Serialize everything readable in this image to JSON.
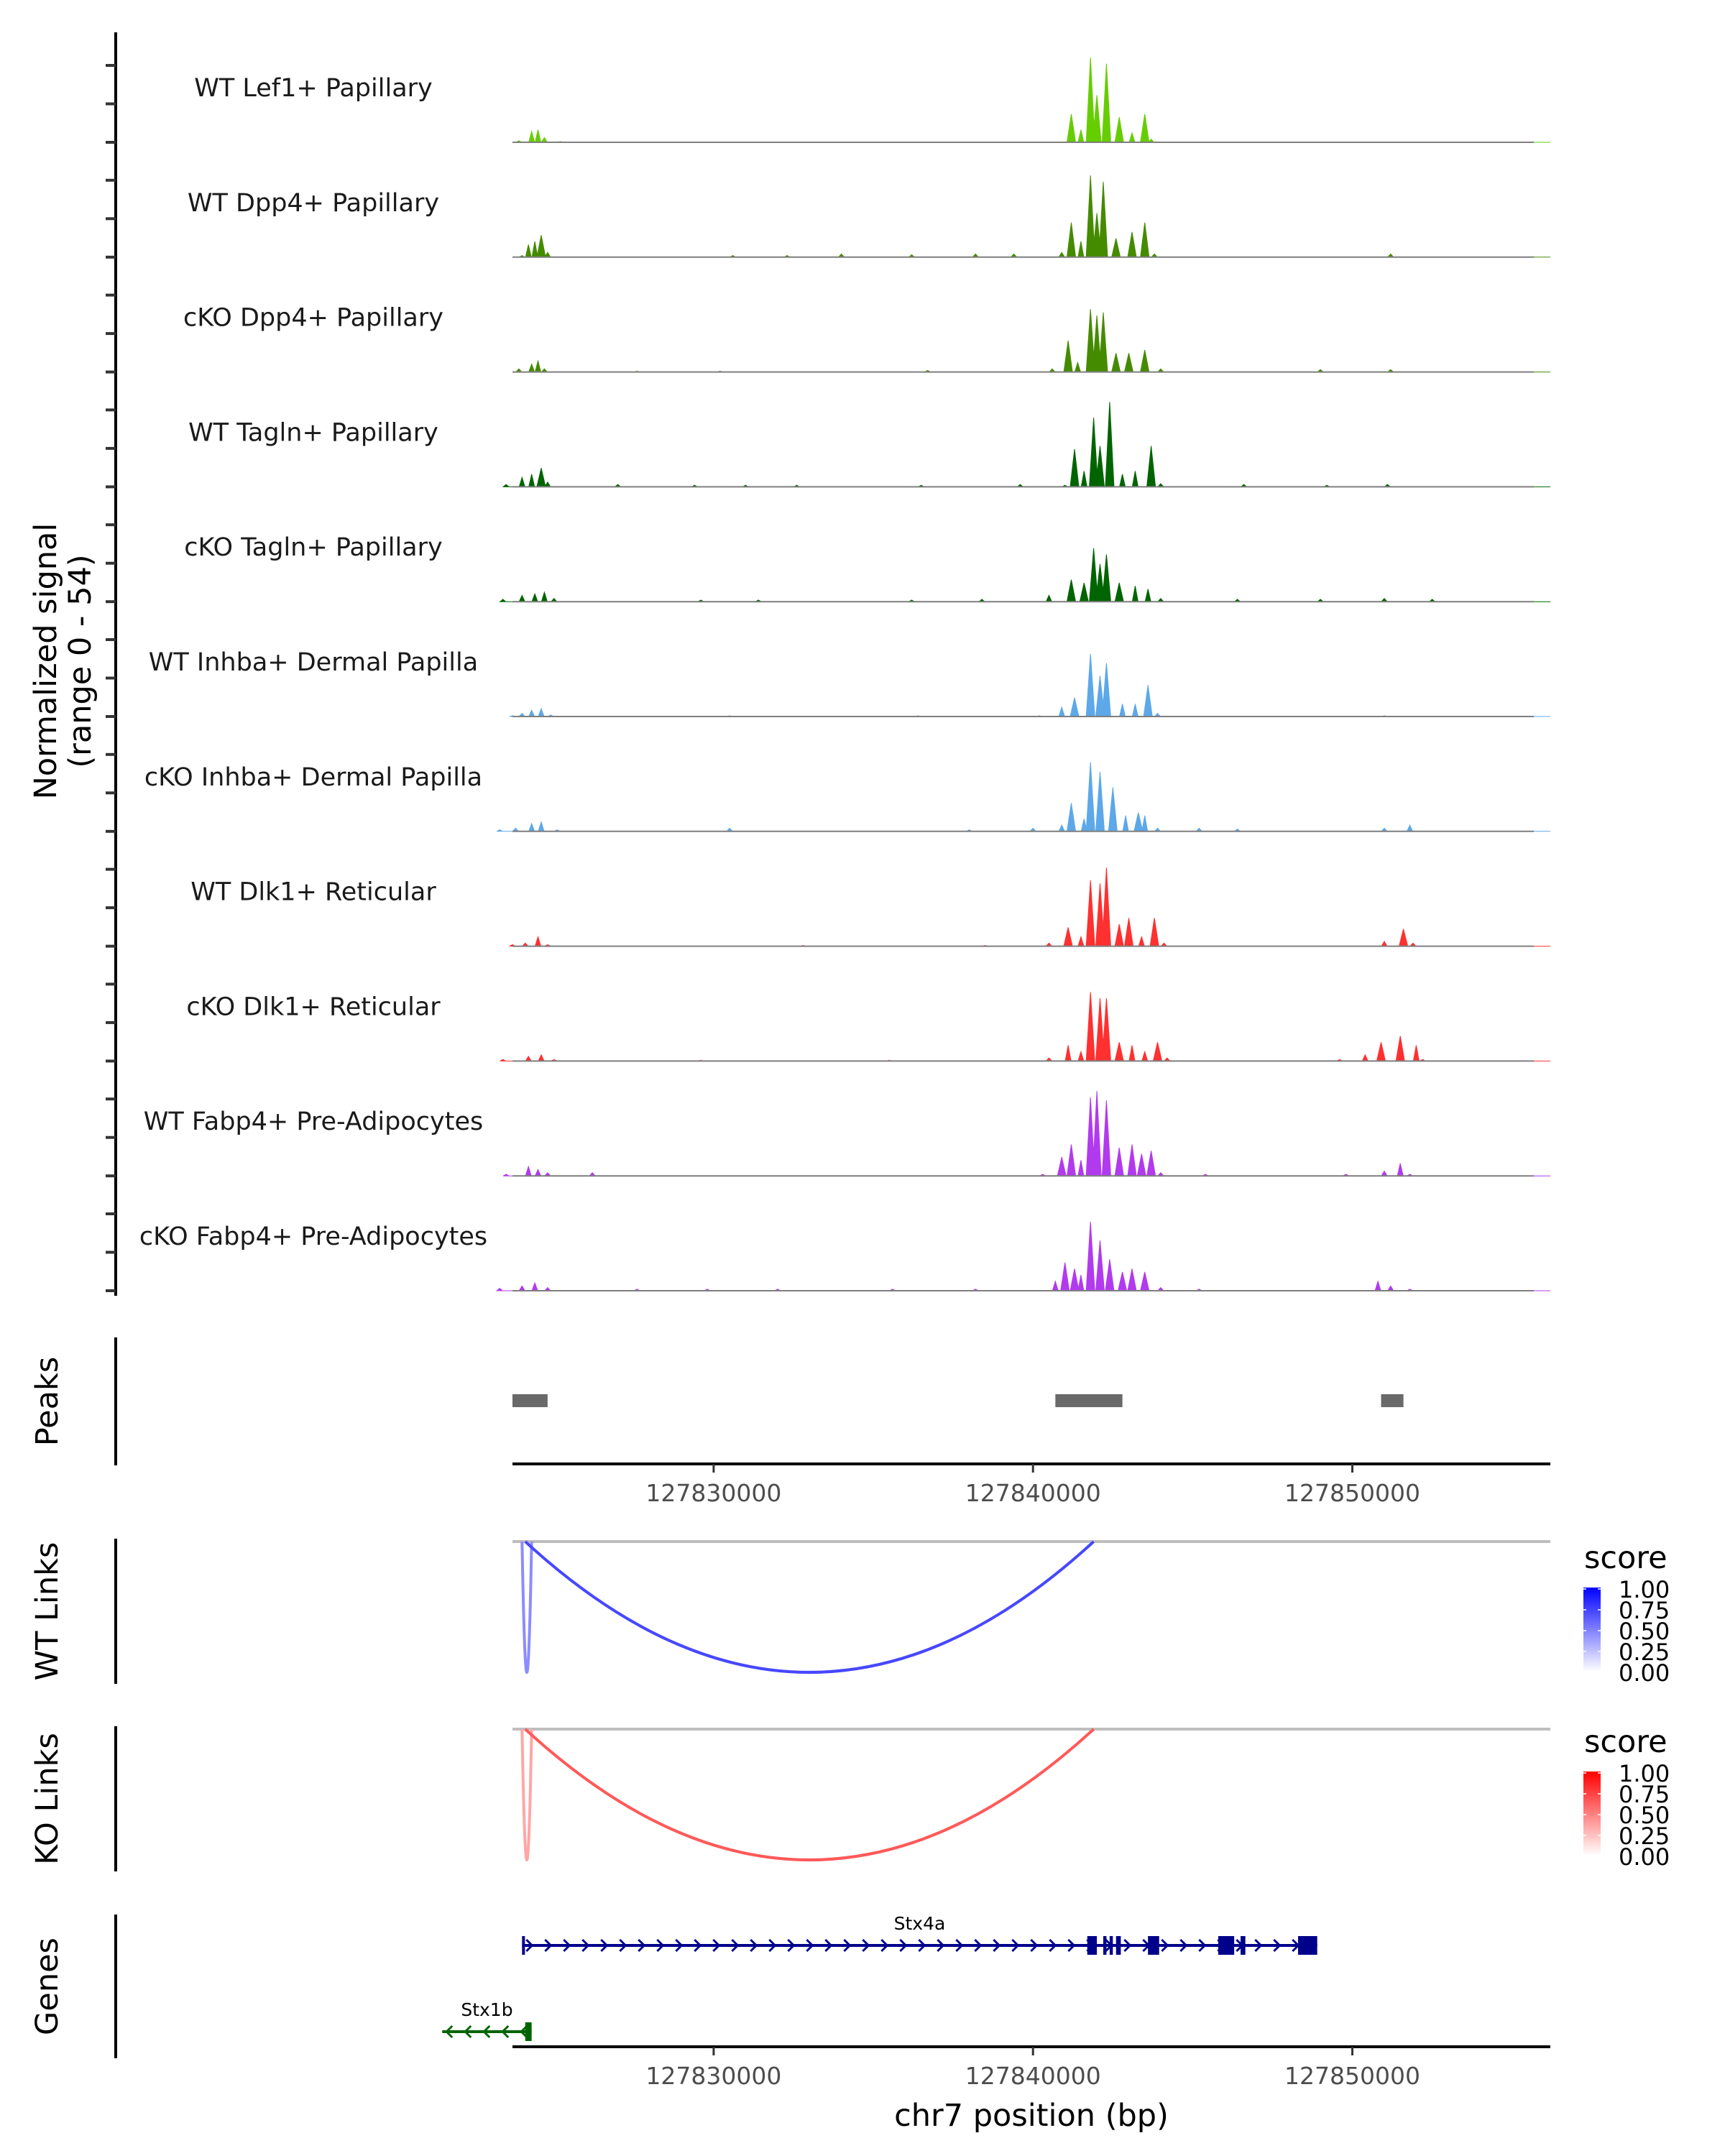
{
  "chart_data": {
    "type": "area",
    "title": "",
    "chromosome": "chr7",
    "xlabel": "chr7 position (bp)",
    "ylabel": "Normalized signal\n(range 0 - 54)",
    "ylabel_lines": [
      "Normalized signal",
      "(range 0 - 54)"
    ],
    "ylim": [
      0,
      54
    ],
    "xlim": [
      127823700,
      127856200
    ],
    "x_ticks": [
      127830000,
      127840000,
      127850000
    ],
    "x_tick_labels": [
      "127830000",
      "127840000",
      "127850000"
    ],
    "tracks": [
      {
        "name": "WT Lef1+ Papillary",
        "color": "#66CD00",
        "peaks": [
          [
            127823900,
            1
          ],
          [
            127824300,
            7
          ],
          [
            127824500,
            8
          ],
          [
            127824700,
            3
          ],
          [
            127825200,
            0.5
          ],
          [
            127840900,
            0
          ],
          [
            127841200,
            18
          ],
          [
            127841500,
            8
          ],
          [
            127841800,
            54
          ],
          [
            127842000,
            30
          ],
          [
            127842300,
            50
          ],
          [
            127842700,
            16
          ],
          [
            127843100,
            6
          ],
          [
            127843500,
            18
          ],
          [
            127843700,
            2
          ]
        ]
      },
      {
        "name": "WT Dpp4+ Papillary",
        "color": "#458B00",
        "peaks": [
          [
            127824000,
            1
          ],
          [
            127824200,
            8
          ],
          [
            127824400,
            10
          ],
          [
            127824600,
            14
          ],
          [
            127824800,
            3
          ],
          [
            127830600,
            1
          ],
          [
            127832300,
            1
          ],
          [
            127834000,
            2
          ],
          [
            127836200,
            1.5
          ],
          [
            127838200,
            2
          ],
          [
            127839400,
            2
          ],
          [
            127840900,
            3
          ],
          [
            127841200,
            22
          ],
          [
            127841500,
            10
          ],
          [
            127841800,
            52
          ],
          [
            127842000,
            28
          ],
          [
            127842200,
            48
          ],
          [
            127842600,
            12
          ],
          [
            127843100,
            16
          ],
          [
            127843500,
            22
          ],
          [
            127843800,
            2
          ],
          [
            127851200,
            2
          ]
        ]
      },
      {
        "name": "cKO Dpp4+ Papillary",
        "color": "#458B00",
        "peaks": [
          [
            127823900,
            2
          ],
          [
            127824300,
            5
          ],
          [
            127824500,
            7
          ],
          [
            127824700,
            2
          ],
          [
            127827600,
            0.5
          ],
          [
            127830200,
            0.5
          ],
          [
            127836700,
            1
          ],
          [
            127840600,
            2
          ],
          [
            127841100,
            20
          ],
          [
            127841400,
            6
          ],
          [
            127841800,
            40
          ],
          [
            127842000,
            36
          ],
          [
            127842200,
            38
          ],
          [
            127842600,
            12
          ],
          [
            127843000,
            12
          ],
          [
            127843500,
            14
          ],
          [
            127844000,
            2
          ],
          [
            127849000,
            1.5
          ],
          [
            127851200,
            1.5
          ]
        ]
      },
      {
        "name": "WT Tagln+ Papillary",
        "color": "#006400",
        "peaks": [
          [
            127823500,
            1.5
          ],
          [
            127824000,
            6
          ],
          [
            127824300,
            8
          ],
          [
            127824600,
            12
          ],
          [
            127824800,
            3
          ],
          [
            127827000,
            1.5
          ],
          [
            127829400,
            1
          ],
          [
            127831000,
            1
          ],
          [
            127832600,
            1
          ],
          [
            127836500,
            1
          ],
          [
            127839600,
            1.5
          ],
          [
            127841000,
            1
          ],
          [
            127841300,
            24
          ],
          [
            127841600,
            10
          ],
          [
            127841900,
            44
          ],
          [
            127842100,
            26
          ],
          [
            127842400,
            54
          ],
          [
            127842800,
            8
          ],
          [
            127843200,
            10
          ],
          [
            127843700,
            26
          ],
          [
            127844000,
            2
          ],
          [
            127846600,
            1.5
          ],
          [
            127849200,
            1
          ],
          [
            127851100,
            1.5
          ]
        ]
      },
      {
        "name": "cKO Tagln+ Papillary",
        "color": "#006400",
        "peaks": [
          [
            127823400,
            1.5
          ],
          [
            127824000,
            4
          ],
          [
            127824400,
            5
          ],
          [
            127824700,
            6
          ],
          [
            127825000,
            2
          ],
          [
            127829600,
            1
          ],
          [
            127831400,
            1
          ],
          [
            127836200,
            1
          ],
          [
            127838400,
            1.5
          ],
          [
            127840500,
            4
          ],
          [
            127841200,
            14
          ],
          [
            127841600,
            12
          ],
          [
            127841900,
            34
          ],
          [
            127842100,
            24
          ],
          [
            127842300,
            30
          ],
          [
            127842700,
            12
          ],
          [
            127843200,
            10
          ],
          [
            127843600,
            8
          ],
          [
            127844000,
            2
          ],
          [
            127846400,
            1.5
          ],
          [
            127849000,
            1.5
          ],
          [
            127851000,
            2
          ],
          [
            127852500,
            1.5
          ]
        ]
      },
      {
        "name": "WT Inhba+ Dermal Papilla",
        "color": "#5CA8E8",
        "peaks": [
          [
            127823700,
            0.5
          ],
          [
            127824000,
            2
          ],
          [
            127824300,
            4
          ],
          [
            127824600,
            5
          ],
          [
            127824900,
            1
          ],
          [
            127830500,
            0.5
          ],
          [
            127836400,
            0.5
          ],
          [
            127840200,
            0.5
          ],
          [
            127840900,
            6
          ],
          [
            127841300,
            12
          ],
          [
            127841800,
            40
          ],
          [
            127842100,
            26
          ],
          [
            127842300,
            34
          ],
          [
            127842800,
            8
          ],
          [
            127843200,
            8
          ],
          [
            127843600,
            20
          ],
          [
            127843900,
            2
          ],
          [
            127851000,
            0.5
          ]
        ]
      },
      {
        "name": "cKO Inhba+ Dermal Papilla",
        "color": "#5CA8E8",
        "peaks": [
          [
            127823300,
            1
          ],
          [
            127823800,
            2
          ],
          [
            127824300,
            5
          ],
          [
            127824600,
            6
          ],
          [
            127825100,
            1
          ],
          [
            127830500,
            2
          ],
          [
            127838000,
            1
          ],
          [
            127840000,
            2
          ],
          [
            127840900,
            4
          ],
          [
            127841200,
            18
          ],
          [
            127841600,
            8
          ],
          [
            127841800,
            44
          ],
          [
            127842100,
            38
          ],
          [
            127842500,
            28
          ],
          [
            127842900,
            10
          ],
          [
            127843300,
            12
          ],
          [
            127843500,
            10
          ],
          [
            127843900,
            2
          ],
          [
            127845200,
            2
          ],
          [
            127846400,
            1.5
          ],
          [
            127851000,
            2
          ],
          [
            127851800,
            4
          ]
        ]
      },
      {
        "name": "WT Dlk1+ Reticular",
        "color": "#FF3030",
        "peaks": [
          [
            127823700,
            1
          ],
          [
            127824100,
            2
          ],
          [
            127824500,
            6
          ],
          [
            127824800,
            1
          ],
          [
            127832800,
            0.5
          ],
          [
            127838500,
            0.5
          ],
          [
            127840500,
            2
          ],
          [
            127841100,
            12
          ],
          [
            127841500,
            6
          ],
          [
            127841800,
            42
          ],
          [
            127842100,
            40
          ],
          [
            127842300,
            50
          ],
          [
            127842700,
            14
          ],
          [
            127843000,
            18
          ],
          [
            127843400,
            6
          ],
          [
            127843800,
            18
          ],
          [
            127844100,
            2
          ],
          [
            127851000,
            3
          ],
          [
            127851600,
            11
          ],
          [
            127851900,
            2
          ]
        ]
      },
      {
        "name": "cKO Dlk1+ Reticular",
        "color": "#FF3030",
        "peaks": [
          [
            127823400,
            1
          ],
          [
            127824200,
            3
          ],
          [
            127824600,
            4
          ],
          [
            127825000,
            1
          ],
          [
            127829600,
            0.5
          ],
          [
            127835500,
            0.5
          ],
          [
            127840500,
            2
          ],
          [
            127841100,
            10
          ],
          [
            127841500,
            6
          ],
          [
            127841800,
            44
          ],
          [
            127842100,
            40
          ],
          [
            127842300,
            40
          ],
          [
            127842700,
            12
          ],
          [
            127843100,
            10
          ],
          [
            127843500,
            6
          ],
          [
            127843900,
            12
          ],
          [
            127844200,
            2
          ],
          [
            127849600,
            1
          ],
          [
            127850400,
            4
          ],
          [
            127850900,
            12
          ],
          [
            127851500,
            16
          ],
          [
            127852000,
            10
          ],
          [
            127852200,
            1
          ]
        ]
      },
      {
        "name": "WT Fabp4+ Pre-Adipocytes",
        "color": "#B23AEE",
        "peaks": [
          [
            127823500,
            1
          ],
          [
            127824200,
            6
          ],
          [
            127824500,
            4
          ],
          [
            127824800,
            2
          ],
          [
            127826200,
            2
          ],
          [
            127840300,
            1
          ],
          [
            127840900,
            12
          ],
          [
            127841200,
            20
          ],
          [
            127841500,
            10
          ],
          [
            127841800,
            50
          ],
          [
            127842000,
            54
          ],
          [
            127842300,
            48
          ],
          [
            127842700,
            18
          ],
          [
            127843100,
            20
          ],
          [
            127843400,
            14
          ],
          [
            127843700,
            16
          ],
          [
            127844000,
            2
          ],
          [
            127845400,
            1
          ],
          [
            127849800,
            1
          ],
          [
            127851000,
            3
          ],
          [
            127851500,
            8
          ],
          [
            127851800,
            1
          ]
        ]
      },
      {
        "name": "cKO Fabp4+ Pre-Adipocytes",
        "color": "#B23AEE",
        "peaks": [
          [
            127823300,
            1.5
          ],
          [
            127824000,
            3
          ],
          [
            127824400,
            5
          ],
          [
            127824800,
            2
          ],
          [
            127827600,
            1
          ],
          [
            127829800,
            1
          ],
          [
            127832000,
            1
          ],
          [
            127835600,
            1
          ],
          [
            127838200,
            1
          ],
          [
            127840700,
            6
          ],
          [
            127841000,
            18
          ],
          [
            127841300,
            14
          ],
          [
            127841500,
            10
          ],
          [
            127841800,
            44
          ],
          [
            127842100,
            32
          ],
          [
            127842400,
            20
          ],
          [
            127842800,
            12
          ],
          [
            127843100,
            14
          ],
          [
            127843500,
            12
          ],
          [
            127844000,
            2
          ],
          [
            127845200,
            1
          ],
          [
            127850800,
            6
          ],
          [
            127851200,
            3
          ],
          [
            127851800,
            1
          ]
        ]
      }
    ],
    "peaks_track": {
      "label": "Peaks",
      "color": "#696969",
      "regions": [
        [
          127823700,
          127824800
        ],
        [
          127840700,
          127842800
        ],
        [
          127850900,
          127851600
        ]
      ]
    },
    "links": [
      {
        "label": "WT Links",
        "color_high": "#0000FF",
        "color_low": "#FFFFFF",
        "items": [
          {
            "start": 127824000,
            "end": 127824300,
            "score": 0.45
          },
          {
            "start": 127824100,
            "end": 127841900,
            "score": 0.72
          }
        ]
      },
      {
        "label": "KO Links",
        "color_high": "#FF0000",
        "color_low": "#FFFFFF",
        "items": [
          {
            "start": 127824000,
            "end": 127824300,
            "score": 0.35
          },
          {
            "start": 127824100,
            "end": 127841900,
            "score": 0.65
          }
        ]
      }
    ],
    "legends": [
      {
        "title": "score",
        "gradient": [
          "#FFFFFF",
          "#0000FF"
        ],
        "ticks": [
          "1.00",
          "0.75",
          "0.50",
          "0.25",
          "0.00"
        ]
      },
      {
        "title": "score",
        "gradient": [
          "#FFFFFF",
          "#FF0000"
        ],
        "ticks": [
          "1.00",
          "0.75",
          "0.50",
          "0.25",
          "0.00"
        ]
      }
    ],
    "genes": {
      "label": "Genes",
      "items": [
        {
          "name": "Stx4a",
          "strand": "+",
          "color": "#00008B",
          "start": 127824000,
          "end": 127848900,
          "exons": [
            [
              127824000,
              127824050
            ],
            [
              127841700,
              127842000
            ],
            [
              127842200,
              127842300
            ],
            [
              127842400,
              127842500
            ],
            [
              127842600,
              127842750
            ],
            [
              127843600,
              127843950
            ],
            [
              127845800,
              127846300
            ],
            [
              127846500,
              127846650
            ],
            [
              127848300,
              127848900
            ]
          ]
        },
        {
          "name": "Stx1b",
          "strand": "-",
          "color": "#006400",
          "start": 127821500,
          "end": 127824300,
          "exons": [
            [
              127824100,
              127824300
            ]
          ]
        }
      ]
    }
  }
}
